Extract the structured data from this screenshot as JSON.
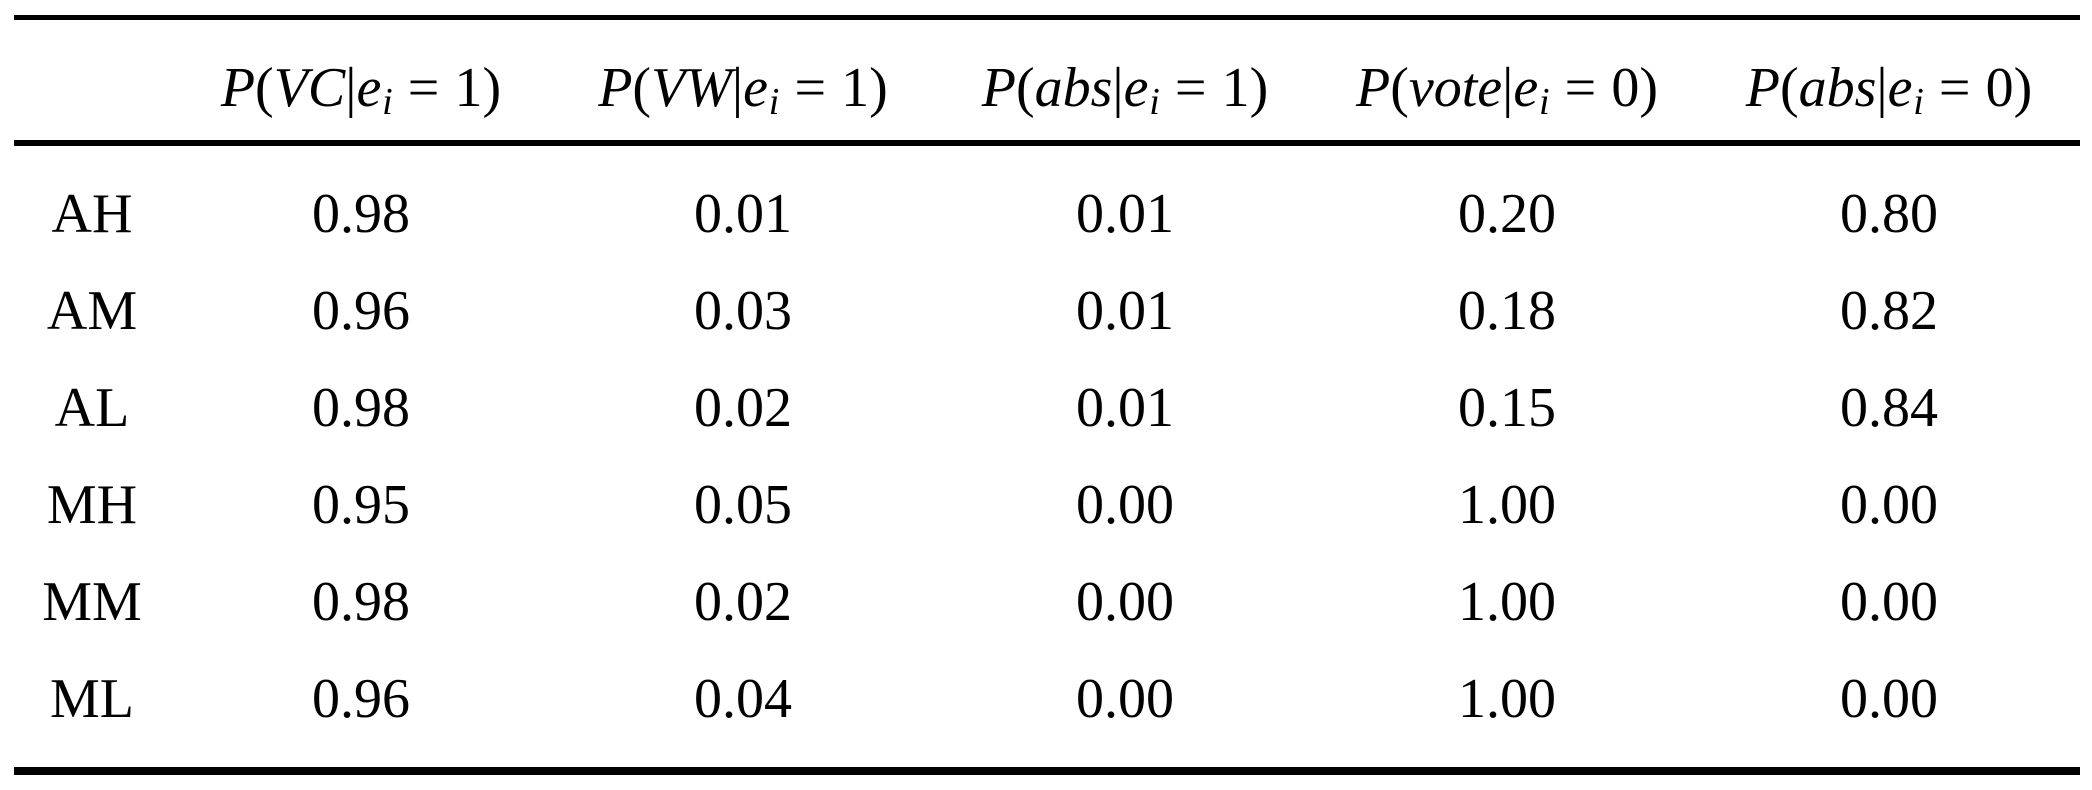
{
  "page": {
    "background_color": "#ffffff",
    "text_color": "#000000",
    "rule_color": "#000000"
  },
  "table": {
    "columns": [
      {
        "text": "P(VC|e_i = 1)",
        "p": "P",
        "open": "(",
        "arg": "VC",
        "bar": "|",
        "e": "e",
        "sub": "i",
        "rel": "=",
        "val": "1",
        "close": ")"
      },
      {
        "text": "P(VW|e_i = 1)",
        "p": "P",
        "open": "(",
        "arg": "VW",
        "bar": "|",
        "e": "e",
        "sub": "i",
        "rel": "=",
        "val": "1",
        "close": ")"
      },
      {
        "text": "P(abs|e_i = 1)",
        "p": "P",
        "open": "(",
        "arg": "abs",
        "bar": "|",
        "e": "e",
        "sub": "i",
        "rel": "=",
        "val": "1",
        "close": ")"
      },
      {
        "text": "P(vote|e_i = 0)",
        "p": "P",
        "open": "(",
        "arg": "vote",
        "bar": "|",
        "e": "e",
        "sub": "i",
        "rel": "=",
        "val": "0",
        "close": ")"
      },
      {
        "text": "P(abs|e_i = 0)",
        "p": "P",
        "open": "(",
        "arg": "abs",
        "bar": "|",
        "e": "e",
        "sub": "i",
        "rel": "=",
        "val": "0",
        "close": ")"
      }
    ],
    "rows": [
      {
        "label": "AH",
        "cells": [
          "0.98",
          "0.01",
          "0.01",
          "0.20",
          "0.80"
        ]
      },
      {
        "label": "AM",
        "cells": [
          "0.96",
          "0.03",
          "0.01",
          "0.18",
          "0.82"
        ]
      },
      {
        "label": "AL",
        "cells": [
          "0.98",
          "0.02",
          "0.01",
          "0.15",
          "0.84"
        ]
      },
      {
        "label": "MH",
        "cells": [
          "0.95",
          "0.05",
          "0.00",
          "1.00",
          "0.00"
        ]
      },
      {
        "label": "MM",
        "cells": [
          "0.98",
          "0.02",
          "0.00",
          "1.00",
          "0.00"
        ]
      },
      {
        "label": "ML",
        "cells": [
          "0.96",
          "0.04",
          "0.00",
          "1.00",
          "0.00"
        ]
      }
    ]
  }
}
